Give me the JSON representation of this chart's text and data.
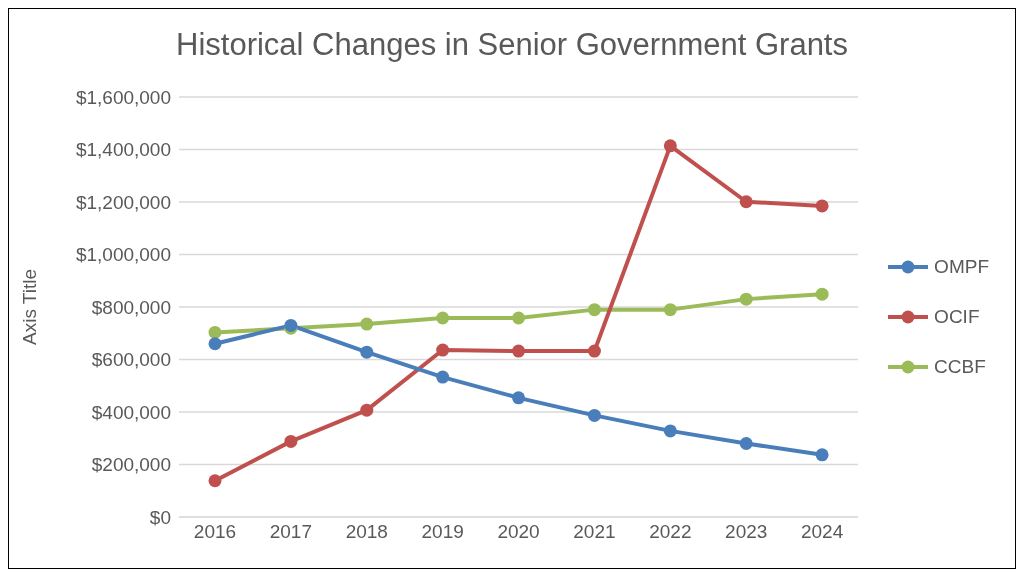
{
  "chart_data": {
    "type": "line",
    "title": "Historical Changes in Senior Government Grants",
    "ylabel": "Axis Title",
    "categories": [
      "2016",
      "2017",
      "2018",
      "2019",
      "2020",
      "2021",
      "2022",
      "2023",
      "2024"
    ],
    "series": [
      {
        "name": "OMPF",
        "color": "#4a7ebb",
        "values": [
          660000,
          730000,
          628000,
          533000,
          454000,
          387000,
          328000,
          280000,
          237000
        ]
      },
      {
        "name": "OCIF",
        "color": "#c0504d",
        "values": [
          138000,
          288000,
          407000,
          636000,
          632000,
          632000,
          1414000,
          1201000,
          1185000
        ]
      },
      {
        "name": "CCBF",
        "color": "#9bbb59",
        "values": [
          703000,
          719000,
          735000,
          758000,
          758000,
          790000,
          790000,
          830000,
          849000
        ]
      }
    ],
    "ylim": [
      0,
      1600000
    ],
    "yticks": [
      {
        "value": 0,
        "label": "$0"
      },
      {
        "value": 200000,
        "label": "$200,000"
      },
      {
        "value": 400000,
        "label": "$400,000"
      },
      {
        "value": 600000,
        "label": "$600,000"
      },
      {
        "value": 800000,
        "label": "$800,000"
      },
      {
        "value": 1000000,
        "label": "$1,000,000"
      },
      {
        "value": 1200000,
        "label": "$1,200,000"
      },
      {
        "value": 1400000,
        "label": "$1,400,000"
      },
      {
        "value": 1600000,
        "label": "$1,600,000"
      }
    ],
    "grid": "y",
    "legend": "right",
    "marker": "circle",
    "line_style": "solid"
  }
}
